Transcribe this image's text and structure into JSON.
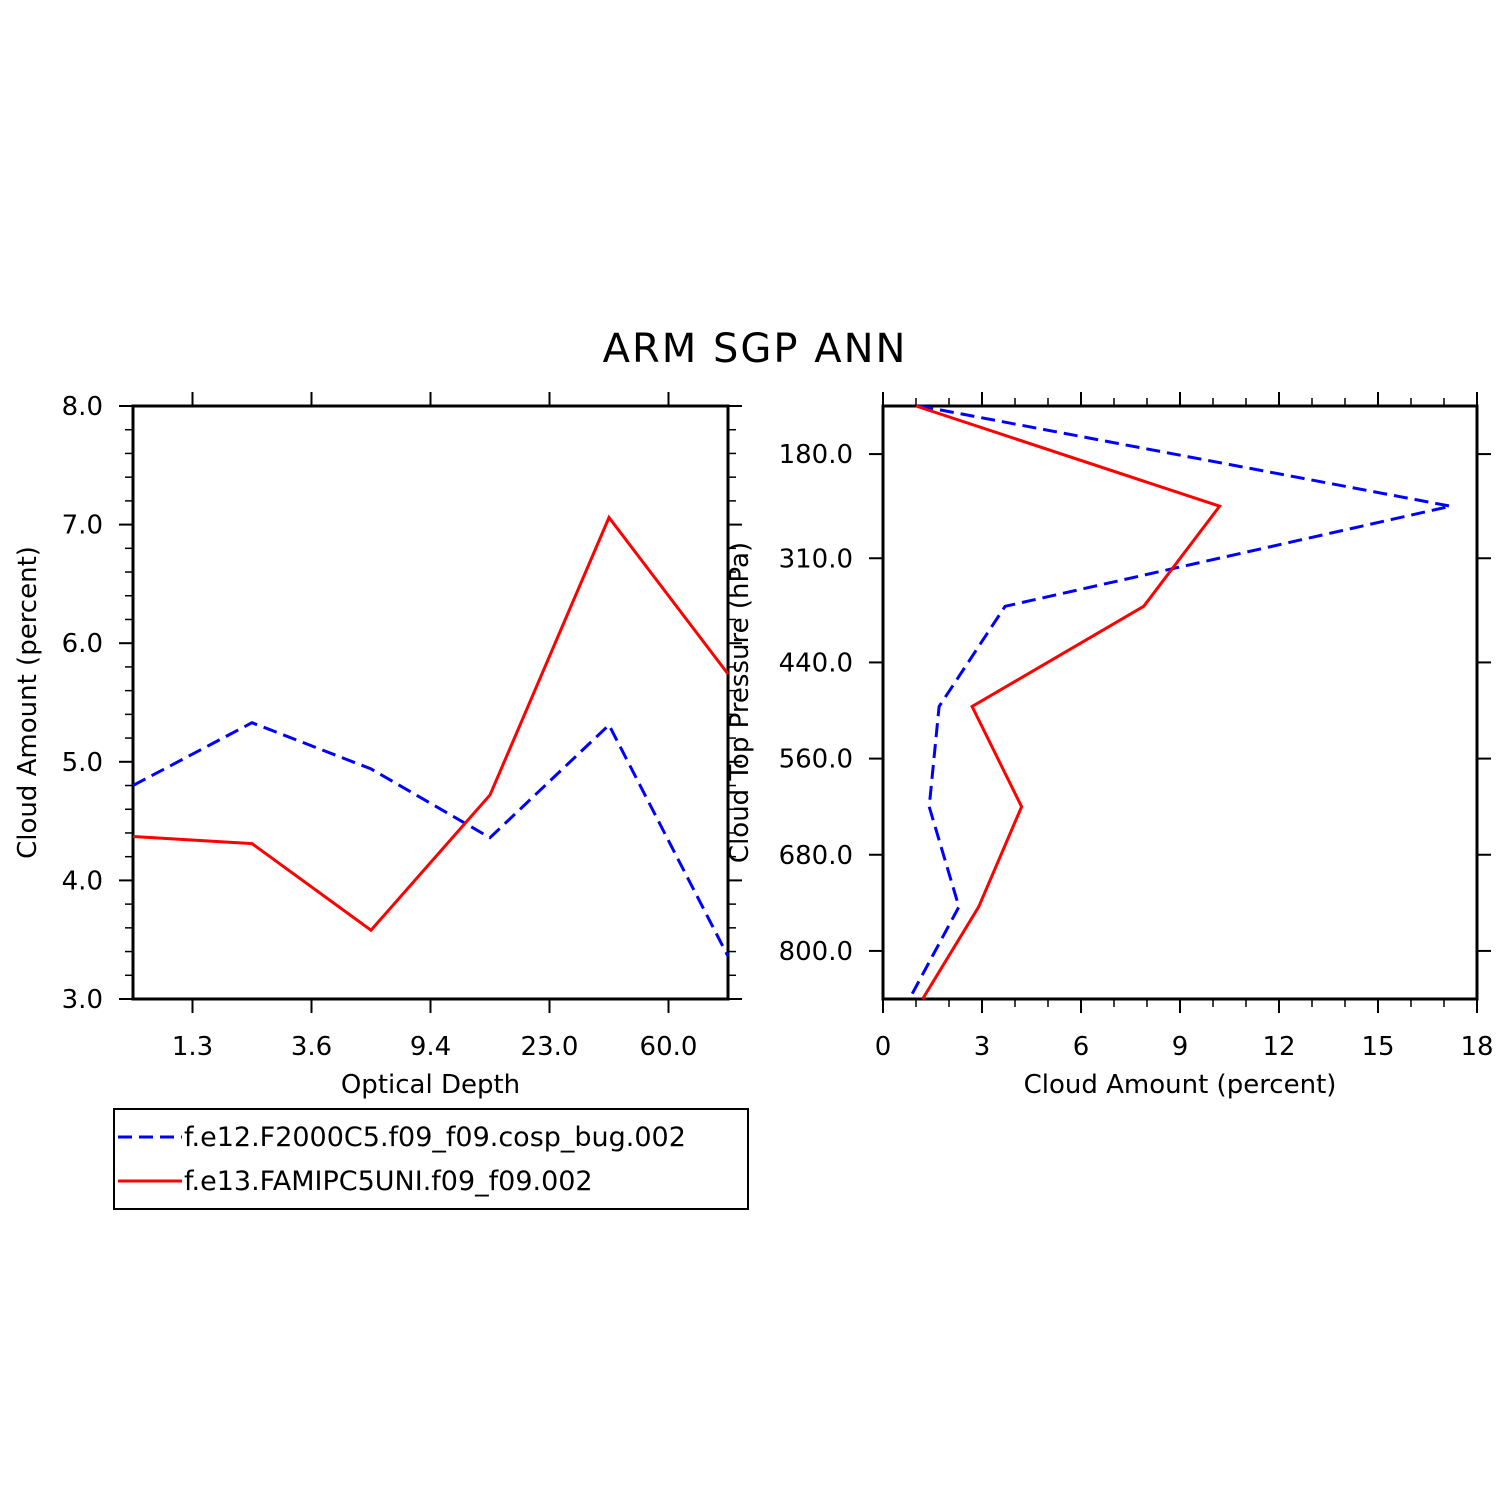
{
  "chart_data": [
    {
      "type": "line",
      "title": "ARM SGP ANN",
      "xlabel": "Optical Depth",
      "ylabel": "Cloud Amount (percent)",
      "x_tick_labels": [
        "1.3",
        "3.6",
        "9.4",
        "23.0",
        "60.0"
      ],
      "y_tick_labels": [
        "3.0",
        "4.0",
        "5.0",
        "6.0",
        "7.0",
        "8.0"
      ],
      "ylim": [
        3.0,
        8.0
      ],
      "x_bins": 5,
      "series": [
        {
          "name": "f.e12.F2000C5.f09_f09.cosp_bug.002",
          "color": "#0000ff",
          "dash": "dashed",
          "x": [
            0,
            1,
            2,
            3,
            4,
            5
          ],
          "values": [
            4.8,
            5.33,
            4.94,
            4.36,
            5.31,
            3.36
          ]
        },
        {
          "name": "f.e13.FAMIPC5UNI.f09_f09.002",
          "color": "#ff0000",
          "dash": "solid",
          "x": [
            0,
            1,
            2,
            3,
            4,
            5
          ],
          "values": [
            4.37,
            4.31,
            3.58,
            4.72,
            7.06,
            5.74
          ]
        }
      ]
    },
    {
      "type": "line",
      "title": "ARM SGP ANN",
      "xlabel": "Cloud Amount (percent)",
      "ylabel": "Cloud Top Pressure (hPa)",
      "x_tick_labels": [
        "0",
        "3",
        "6",
        "9",
        "12",
        "15",
        "18"
      ],
      "xlim": [
        0,
        18
      ],
      "y_tick_labels": [
        "180.0",
        "310.0",
        "440.0",
        "560.0",
        "680.0",
        "800.0"
      ],
      "y_tick_values": [
        180,
        310,
        440,
        560,
        680,
        800
      ],
      "ylim": [
        120,
        860
      ],
      "series": [
        {
          "name": "f.e12.F2000C5.f09_f09.cosp_bug.002",
          "color": "#0000ff",
          "dash": "dashed",
          "pressure": [
            120,
            245,
            370,
            495,
            620,
            745,
            860
          ],
          "values": [
            1.1,
            17.2,
            3.7,
            1.7,
            1.4,
            2.3,
            0.8
          ]
        },
        {
          "name": "f.e13.FAMIPC5UNI.f09_f09.002",
          "color": "#ff0000",
          "dash": "solid",
          "pressure": [
            120,
            245,
            370,
            495,
            620,
            745,
            860
          ],
          "values": [
            1.0,
            10.2,
            7.9,
            2.7,
            4.2,
            2.9,
            1.2
          ]
        }
      ]
    }
  ]
}
